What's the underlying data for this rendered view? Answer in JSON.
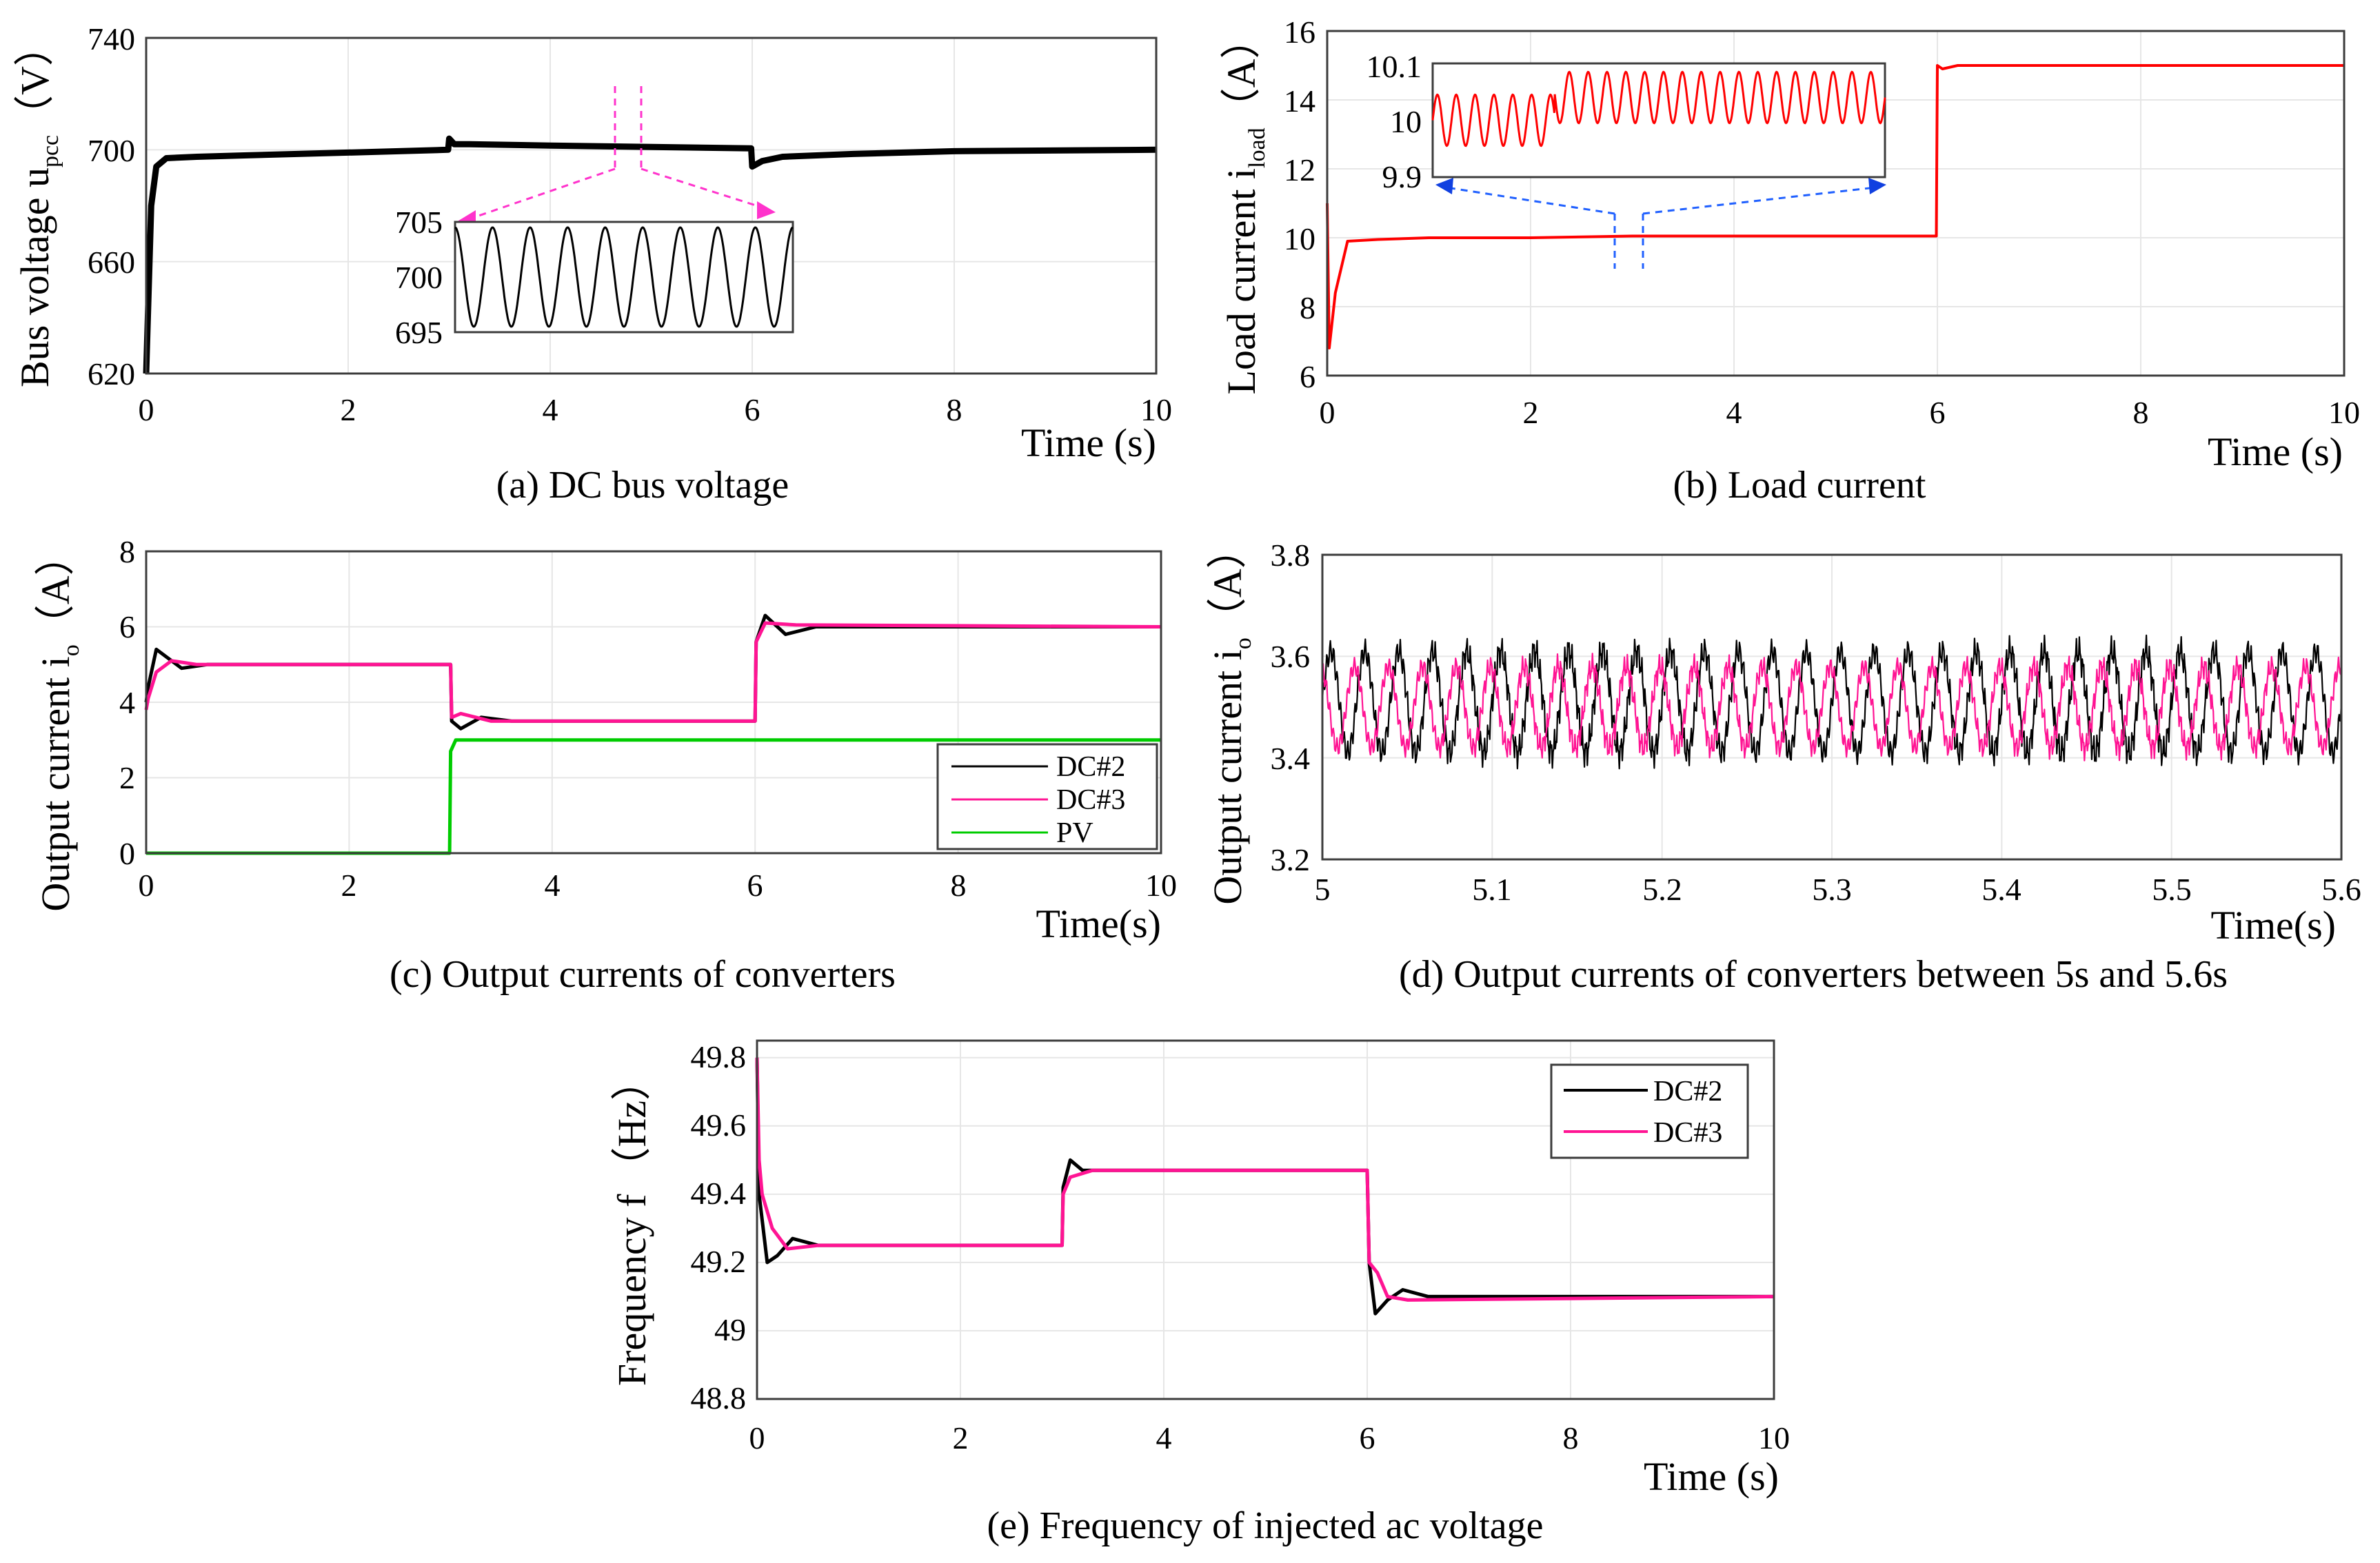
{
  "figure": {
    "panels": [
      {
        "id": "a",
        "caption": "(a) DC bus voltage",
        "ylabel": "Bus voltage u",
        "ylabel_sub": "pcc",
        "ylabel_unit": "（V）",
        "xlabel": "Time (s)",
        "xticks": [
          "0",
          "2",
          "4",
          "6",
          "8",
          "10"
        ],
        "yticks": [
          "620",
          "660",
          "700",
          "740"
        ]
      },
      {
        "id": "b",
        "caption": "(b) Load current",
        "ylabel": "Load current i",
        "ylabel_sub": "load",
        "ylabel_unit": "（A）",
        "xlabel": "Time (s)",
        "xticks": [
          "0",
          "2",
          "4",
          "6",
          "8",
          "10"
        ],
        "yticks": [
          "6",
          "8",
          "10",
          "12",
          "14",
          "16"
        ]
      },
      {
        "id": "c",
        "caption": "(c) Output currents of converters",
        "ylabel": "Output current i",
        "ylabel_sub": "o",
        "ylabel_unit": "（A）",
        "xlabel": "Time(s)",
        "xticks": [
          "0",
          "2",
          "4",
          "6",
          "8",
          "10"
        ],
        "yticks": [
          "0",
          "2",
          "4",
          "6",
          "8"
        ],
        "legend": [
          "DC#2",
          "DC#3",
          "PV"
        ]
      },
      {
        "id": "d",
        "caption": "(d) Output currents of converters between 5s and 5.6s",
        "ylabel": "Output current i",
        "ylabel_sub": "o",
        "ylabel_unit": "（A）",
        "xlabel": "Time(s)",
        "xticks": [
          "5",
          "5.1",
          "5.2",
          "5.3",
          "5.4",
          "5.5",
          "5.6"
        ],
        "yticks": [
          "3.2",
          "3.4",
          "3.6",
          "3.8"
        ]
      },
      {
        "id": "e",
        "caption": "(e) Frequency of injected ac voltage",
        "ylabel": "Frequency f",
        "ylabel_unit": "（Hz）",
        "xlabel": "Time (s)",
        "xticks": [
          "0",
          "2",
          "4",
          "6",
          "8",
          "10"
        ],
        "yticks": [
          "48.8",
          "49",
          "49.2",
          "49.4",
          "49.6",
          "49.8"
        ],
        "legend": [
          "DC#2",
          "DC#3"
        ]
      }
    ],
    "insets": {
      "a": {
        "yticks": [
          "695",
          "700",
          "705"
        ]
      },
      "b": {
        "yticks": [
          "9.9",
          "10",
          "10.1"
        ]
      }
    }
  },
  "chart_data": [
    {
      "type": "line",
      "title": "(a) DC bus voltage",
      "xlabel": "Time (s)",
      "ylabel": "Bus voltage u_pcc (V)",
      "xlim": [
        0,
        10
      ],
      "ylim": [
        620,
        740
      ],
      "series": [
        {
          "name": "u_pcc",
          "color": "#000000",
          "x": [
            0,
            0.05,
            0.1,
            0.2,
            0.5,
            1,
            2,
            2.99,
            3.0,
            3.05,
            3.2,
            4,
            5,
            5.99,
            6.0,
            6.1,
            6.3,
            7,
            8,
            10
          ],
          "y": [
            620,
            680,
            694,
            697,
            697.5,
            698,
            699,
            700,
            704,
            702,
            702,
            701.5,
            701,
            700.5,
            694,
            696,
            697.5,
            698.5,
            699.5,
            700
          ]
        }
      ],
      "inset": {
        "xlim": [
          4.6,
          4.9
        ],
        "ylim": [
          695,
          705
        ],
        "center": 700,
        "amplitude": 4.5,
        "cycles": 9
      }
    },
    {
      "type": "line",
      "title": "(b) Load current",
      "xlabel": "Time (s)",
      "ylabel": "Load current i_load (A)",
      "xlim": [
        0,
        10
      ],
      "ylim": [
        6,
        16
      ],
      "series": [
        {
          "name": "i_load",
          "color": "#ff0000",
          "x": [
            0,
            0.02,
            0.08,
            0.2,
            0.5,
            1,
            2,
            3,
            4,
            5,
            5.99,
            6.0,
            6.05,
            6.2,
            8,
            10
          ],
          "y": [
            11,
            6.8,
            8.4,
            9.9,
            9.95,
            10,
            10,
            10.05,
            10.05,
            10.05,
            10.05,
            15,
            14.9,
            15,
            15,
            15
          ]
        }
      ],
      "inset": {
        "ylim": [
          9.9,
          10.1
        ],
        "center_before": 10.0,
        "center_after": 10.04,
        "amplitude": 0.045,
        "cycles": 24
      }
    },
    {
      "type": "line",
      "title": "(c) Output currents of converters",
      "xlabel": "Time(s)",
      "ylabel": "Output current i_o (A)",
      "xlim": [
        0,
        10
      ],
      "ylim": [
        0,
        8
      ],
      "legend_position": "bottom-right",
      "series": [
        {
          "name": "DC#2",
          "color": "#000000",
          "x": [
            0,
            0.02,
            0.1,
            0.2,
            0.35,
            0.6,
            3.0,
            3.01,
            3.1,
            3.3,
            3.6,
            6.0,
            6.01,
            6.1,
            6.3,
            6.6,
            10
          ],
          "y": [
            4,
            4.4,
            5.4,
            5.2,
            4.9,
            5,
            5,
            3.5,
            3.3,
            3.6,
            3.5,
            3.5,
            5.6,
            6.3,
            5.8,
            6,
            6
          ]
        },
        {
          "name": "DC#3",
          "color": "#ff1493",
          "x": [
            0,
            0.02,
            0.1,
            0.25,
            0.5,
            3.0,
            3.01,
            3.1,
            3.4,
            6.0,
            6.01,
            6.1,
            6.4,
            10
          ],
          "y": [
            3.8,
            4.1,
            4.8,
            5.1,
            5,
            5,
            3.6,
            3.7,
            3.5,
            3.5,
            5.6,
            6.1,
            6.05,
            6
          ]
        },
        {
          "name": "PV",
          "color": "#00cc00",
          "x": [
            0,
            2.99,
            3.0,
            3.05,
            10
          ],
          "y": [
            0,
            0,
            2.7,
            3,
            3
          ]
        }
      ]
    },
    {
      "type": "line",
      "title": "(d) Output currents of converters between 5s and 5.6s",
      "xlabel": "Time(s)",
      "ylabel": "Output current i_o (A)",
      "xlim": [
        5,
        5.6
      ],
      "ylim": [
        3.2,
        3.8
      ],
      "series": [
        {
          "name": "DC#2",
          "color": "#000000",
          "mean": 3.51,
          "amplitude": 0.1,
          "cycles": 30
        },
        {
          "name": "DC#3",
          "color": "#ff1493",
          "mean": 3.5,
          "amplitude": 0.08,
          "cycles": 30
        }
      ]
    },
    {
      "type": "line",
      "title": "(e) Frequency of injected ac voltage",
      "xlabel": "Time (s)",
      "ylabel": "Frequency f (Hz)",
      "xlim": [
        0,
        10
      ],
      "ylim": [
        48.8,
        49.85
      ],
      "legend_position": "top-right",
      "series": [
        {
          "name": "DC#2",
          "color": "#000000",
          "x": [
            0,
            0.02,
            0.1,
            0.2,
            0.35,
            0.6,
            3.0,
            3.01,
            3.08,
            3.2,
            3.4,
            6.0,
            6.02,
            6.08,
            6.2,
            6.35,
            6.6,
            10
          ],
          "y": [
            49.8,
            49.4,
            49.2,
            49.22,
            49.27,
            49.25,
            49.25,
            49.42,
            49.5,
            49.47,
            49.47,
            49.47,
            49.2,
            49.05,
            49.09,
            49.12,
            49.1,
            49.1
          ]
        },
        {
          "name": "DC#3",
          "color": "#ff1493",
          "x": [
            0,
            0.02,
            0.05,
            0.15,
            0.3,
            0.6,
            3.0,
            3.01,
            3.08,
            3.3,
            6.0,
            6.02,
            6.1,
            6.2,
            6.4,
            10
          ],
          "y": [
            49.8,
            49.5,
            49.4,
            49.3,
            49.24,
            49.25,
            49.25,
            49.4,
            49.45,
            49.47,
            49.47,
            49.2,
            49.17,
            49.1,
            49.09,
            49.1
          ]
        }
      ]
    }
  ]
}
